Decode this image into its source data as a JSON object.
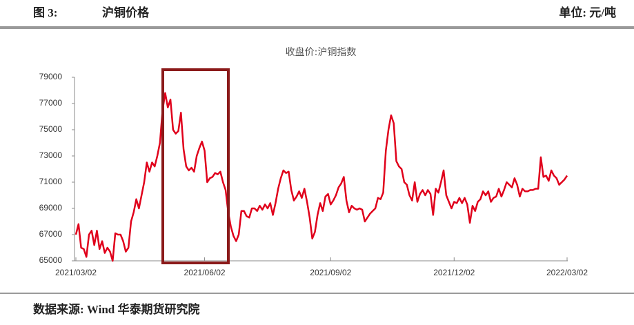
{
  "header": {
    "figure": "图 3:",
    "title": "沪铜价格",
    "unit": "单位: 元/吨"
  },
  "footer": {
    "source": "数据来源: Wind 华泰期货研究院"
  },
  "chart_data": {
    "type": "line",
    "title": "收盘价:沪铜指数",
    "color": "#e0001b",
    "categories": [
      "2021/03/02",
      null,
      null,
      null,
      null,
      null,
      null,
      null,
      null,
      null,
      null,
      null,
      null,
      null,
      null,
      null,
      null,
      null,
      null,
      null,
      null,
      null,
      null,
      null,
      null,
      null,
      null,
      null,
      null,
      null,
      null,
      null,
      null,
      null,
      null,
      null,
      null,
      null,
      null,
      null,
      null,
      null,
      null,
      null,
      null,
      null,
      null,
      null,
      null,
      "2021/06/02",
      null,
      null,
      null,
      null,
      null,
      null,
      null,
      null,
      null,
      null,
      null,
      null,
      null,
      null,
      null,
      null,
      null,
      null,
      null,
      null,
      null,
      null,
      null,
      null,
      null,
      null,
      null,
      null,
      null,
      null,
      null,
      null,
      null,
      null,
      null,
      null,
      null,
      null,
      null,
      null,
      null,
      null,
      null,
      null,
      null,
      null,
      null,
      "2021/09/02",
      null,
      null,
      null,
      null,
      null,
      null,
      null,
      null,
      null,
      null,
      null,
      null,
      null,
      null,
      null,
      null,
      null,
      null,
      null,
      null,
      null,
      null,
      null,
      null,
      null,
      null,
      null,
      null,
      null,
      null,
      null,
      null,
      null,
      null,
      null,
      null,
      null,
      null,
      null,
      null,
      null,
      null,
      null,
      null,
      null,
      null,
      "2021/12/02",
      null,
      null,
      null,
      null,
      null,
      null,
      null,
      null,
      null,
      null,
      null,
      null,
      null,
      null,
      null,
      null,
      null,
      null,
      null,
      null,
      null,
      null,
      null,
      null,
      null,
      null,
      null,
      null,
      null,
      null,
      null,
      null,
      null,
      null,
      null,
      null,
      null,
      null,
      null,
      null,
      null,
      null,
      "2022/03/02"
    ],
    "values": [
      67000,
      67800,
      66000,
      65900,
      65300,
      67000,
      67300,
      66200,
      67300,
      65900,
      66500,
      65600,
      66000,
      65700,
      65000,
      67100,
      67000,
      67000,
      66500,
      65700,
      66000,
      68000,
      68700,
      69700,
      69000,
      70000,
      71000,
      72500,
      71800,
      72500,
      72200,
      73000,
      74000,
      76500,
      77800,
      76700,
      77300,
      75000,
      74700,
      74900,
      76300,
      73500,
      72200,
      71900,
      72100,
      71800,
      73000,
      73600,
      74100,
      73400,
      71000,
      71300,
      71400,
      71700,
      71600,
      71800,
      71000,
      70400,
      68700,
      67600,
      66900,
      66500,
      67000,
      68800,
      68800,
      68400,
      68300,
      69000,
      69000,
      68800,
      69200,
      68900,
      69300,
      69000,
      69400,
      68500,
      69400,
      70500,
      71300,
      71900,
      71700,
      71800,
      70400,
      69600,
      69900,
      70300,
      69800,
      70500,
      69500,
      68300,
      66700,
      67200,
      68500,
      69400,
      68800,
      69900,
      70100,
      69300,
      69600,
      70000,
      70600,
      70900,
      71400,
      69600,
      68700,
      69200,
      69000,
      68900,
      69000,
      68900,
      68000,
      68300,
      68600,
      68800,
      69000,
      69800,
      69700,
      70200,
      73400,
      75000,
      76100,
      75500,
      72600,
      72200,
      72000,
      71000,
      70800,
      70000,
      69600,
      71000,
      69500,
      70100,
      70400,
      70000,
      70400,
      70100,
      68500,
      70500,
      70200,
      71000,
      71900,
      70000,
      69500,
      69000,
      69500,
      69400,
      69800,
      69400,
      69800,
      69300,
      67900,
      69200,
      68800,
      69500,
      69700,
      70300,
      70000,
      70300,
      69500,
      69800,
      69900,
      70500,
      69900,
      70400,
      71000,
      70800,
      70600,
      71300,
      70800,
      69900,
      70500,
      70300,
      70300,
      70400,
      70400,
      70500,
      70500,
      72900,
      71400,
      71500,
      71100,
      71900,
      71500,
      71300,
      70800,
      71000,
      71200,
      71500
    ],
    "ylim": [
      65000,
      79000
    ],
    "yticks": [
      65000,
      67000,
      69000,
      71000,
      73000,
      75000,
      77000,
      79000
    ],
    "grid": false
  }
}
